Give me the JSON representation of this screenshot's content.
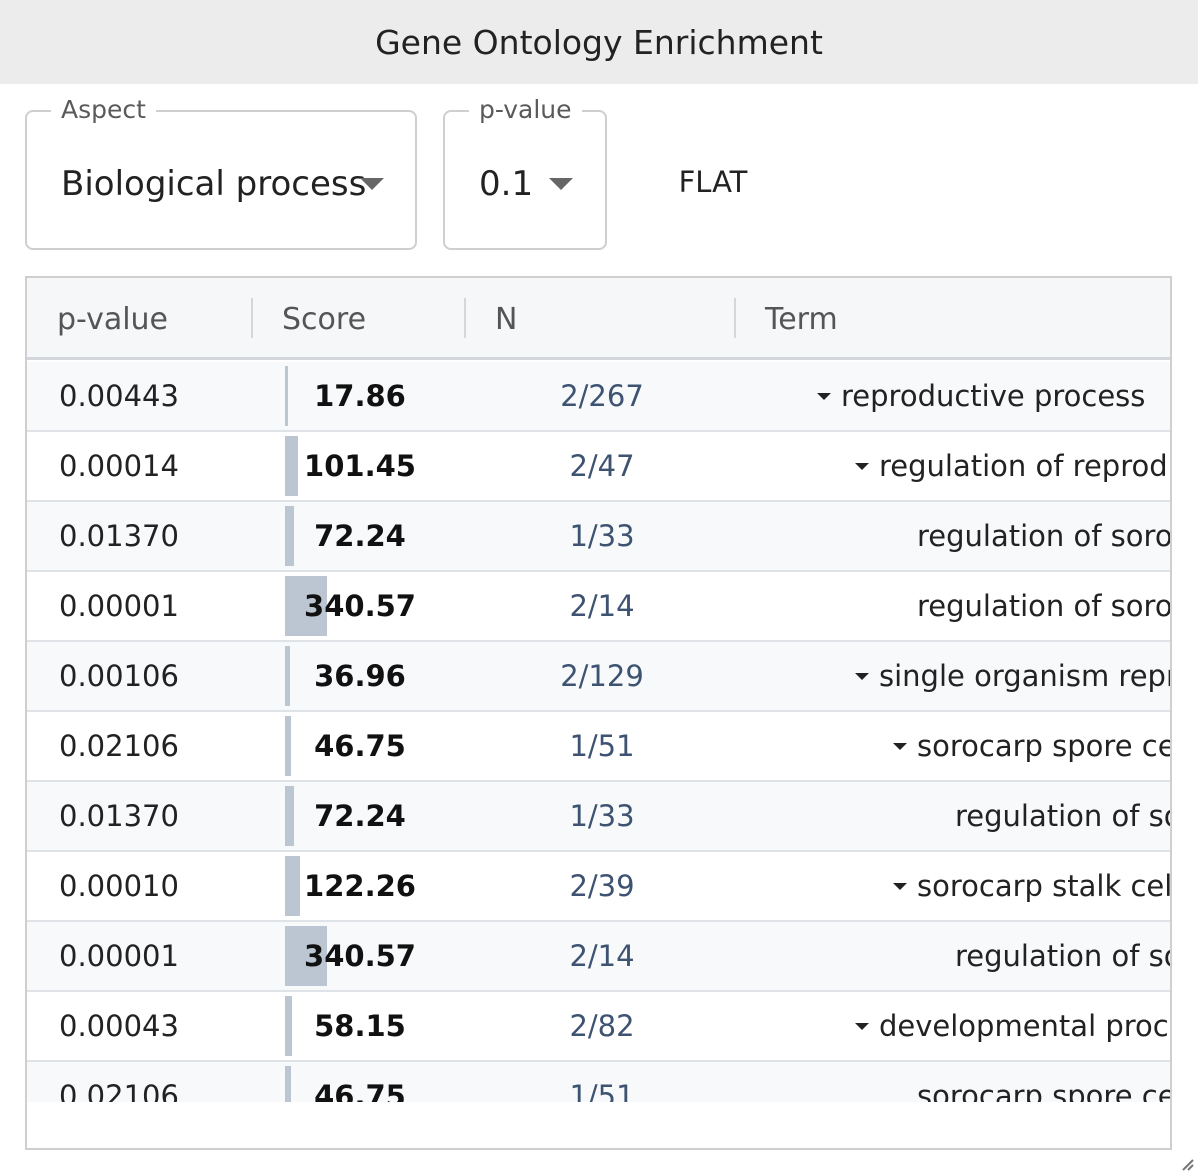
{
  "window": {
    "title": "Gene Ontology Enrichment"
  },
  "controls": {
    "aspect": {
      "label": "Aspect",
      "value": "Biological process"
    },
    "pvalue": {
      "label": "p-value",
      "value": "0.1"
    },
    "flat_label": "FLAT"
  },
  "table": {
    "columns": [
      "p-value",
      "Score",
      "N",
      "Term"
    ],
    "rows": [
      {
        "pvalue": "0.00443",
        "score": "17.86",
        "n": "2/267",
        "term": "reproductive process",
        "depth": 0,
        "expandable": true,
        "bar": 0.005
      },
      {
        "pvalue": "0.00014",
        "score": "101.45",
        "n": "2/47",
        "term": "regulation of reproductive process",
        "depth": 1,
        "expandable": true,
        "bar": 0.03
      },
      {
        "pvalue": "0.01370",
        "score": "72.24",
        "n": "1/33",
        "term": "regulation of sorocarp spore cell differentiation",
        "depth": 2,
        "expandable": false,
        "bar": 0.021
      },
      {
        "pvalue": "0.00001",
        "score": "340.57",
        "n": "2/14",
        "term": "regulation of sorocarp stalk cell differentiation",
        "depth": 2,
        "expandable": false,
        "bar": 0.1
      },
      {
        "pvalue": "0.00106",
        "score": "36.96",
        "n": "2/129",
        "term": "single organism reproductive process",
        "depth": 1,
        "expandable": true,
        "bar": 0.011
      },
      {
        "pvalue": "0.02106",
        "score": "46.75",
        "n": "1/51",
        "term": "sorocarp spore cell differentiation",
        "depth": 2,
        "expandable": true,
        "bar": 0.014
      },
      {
        "pvalue": "0.01370",
        "score": "72.24",
        "n": "1/33",
        "term": "regulation of sorocarp spore cell differentiation",
        "depth": 3,
        "expandable": false,
        "bar": 0.021
      },
      {
        "pvalue": "0.00010",
        "score": "122.26",
        "n": "2/39",
        "term": "sorocarp stalk cell differentiation",
        "depth": 2,
        "expandable": true,
        "bar": 0.036
      },
      {
        "pvalue": "0.00001",
        "score": "340.57",
        "n": "2/14",
        "term": "regulation of sorocarp stalk cell differentiation",
        "depth": 3,
        "expandable": false,
        "bar": 0.1
      },
      {
        "pvalue": "0.00043",
        "score": "58.15",
        "n": "2/82",
        "term": "developmental process",
        "depth": 1,
        "expandable": true,
        "bar": 0.017
      },
      {
        "pvalue": "0.02106",
        "score": "46.75",
        "n": "1/51",
        "term": "sorocarp spore cell differentiation",
        "depth": 2,
        "expandable": false,
        "bar": 0.014
      }
    ]
  }
}
